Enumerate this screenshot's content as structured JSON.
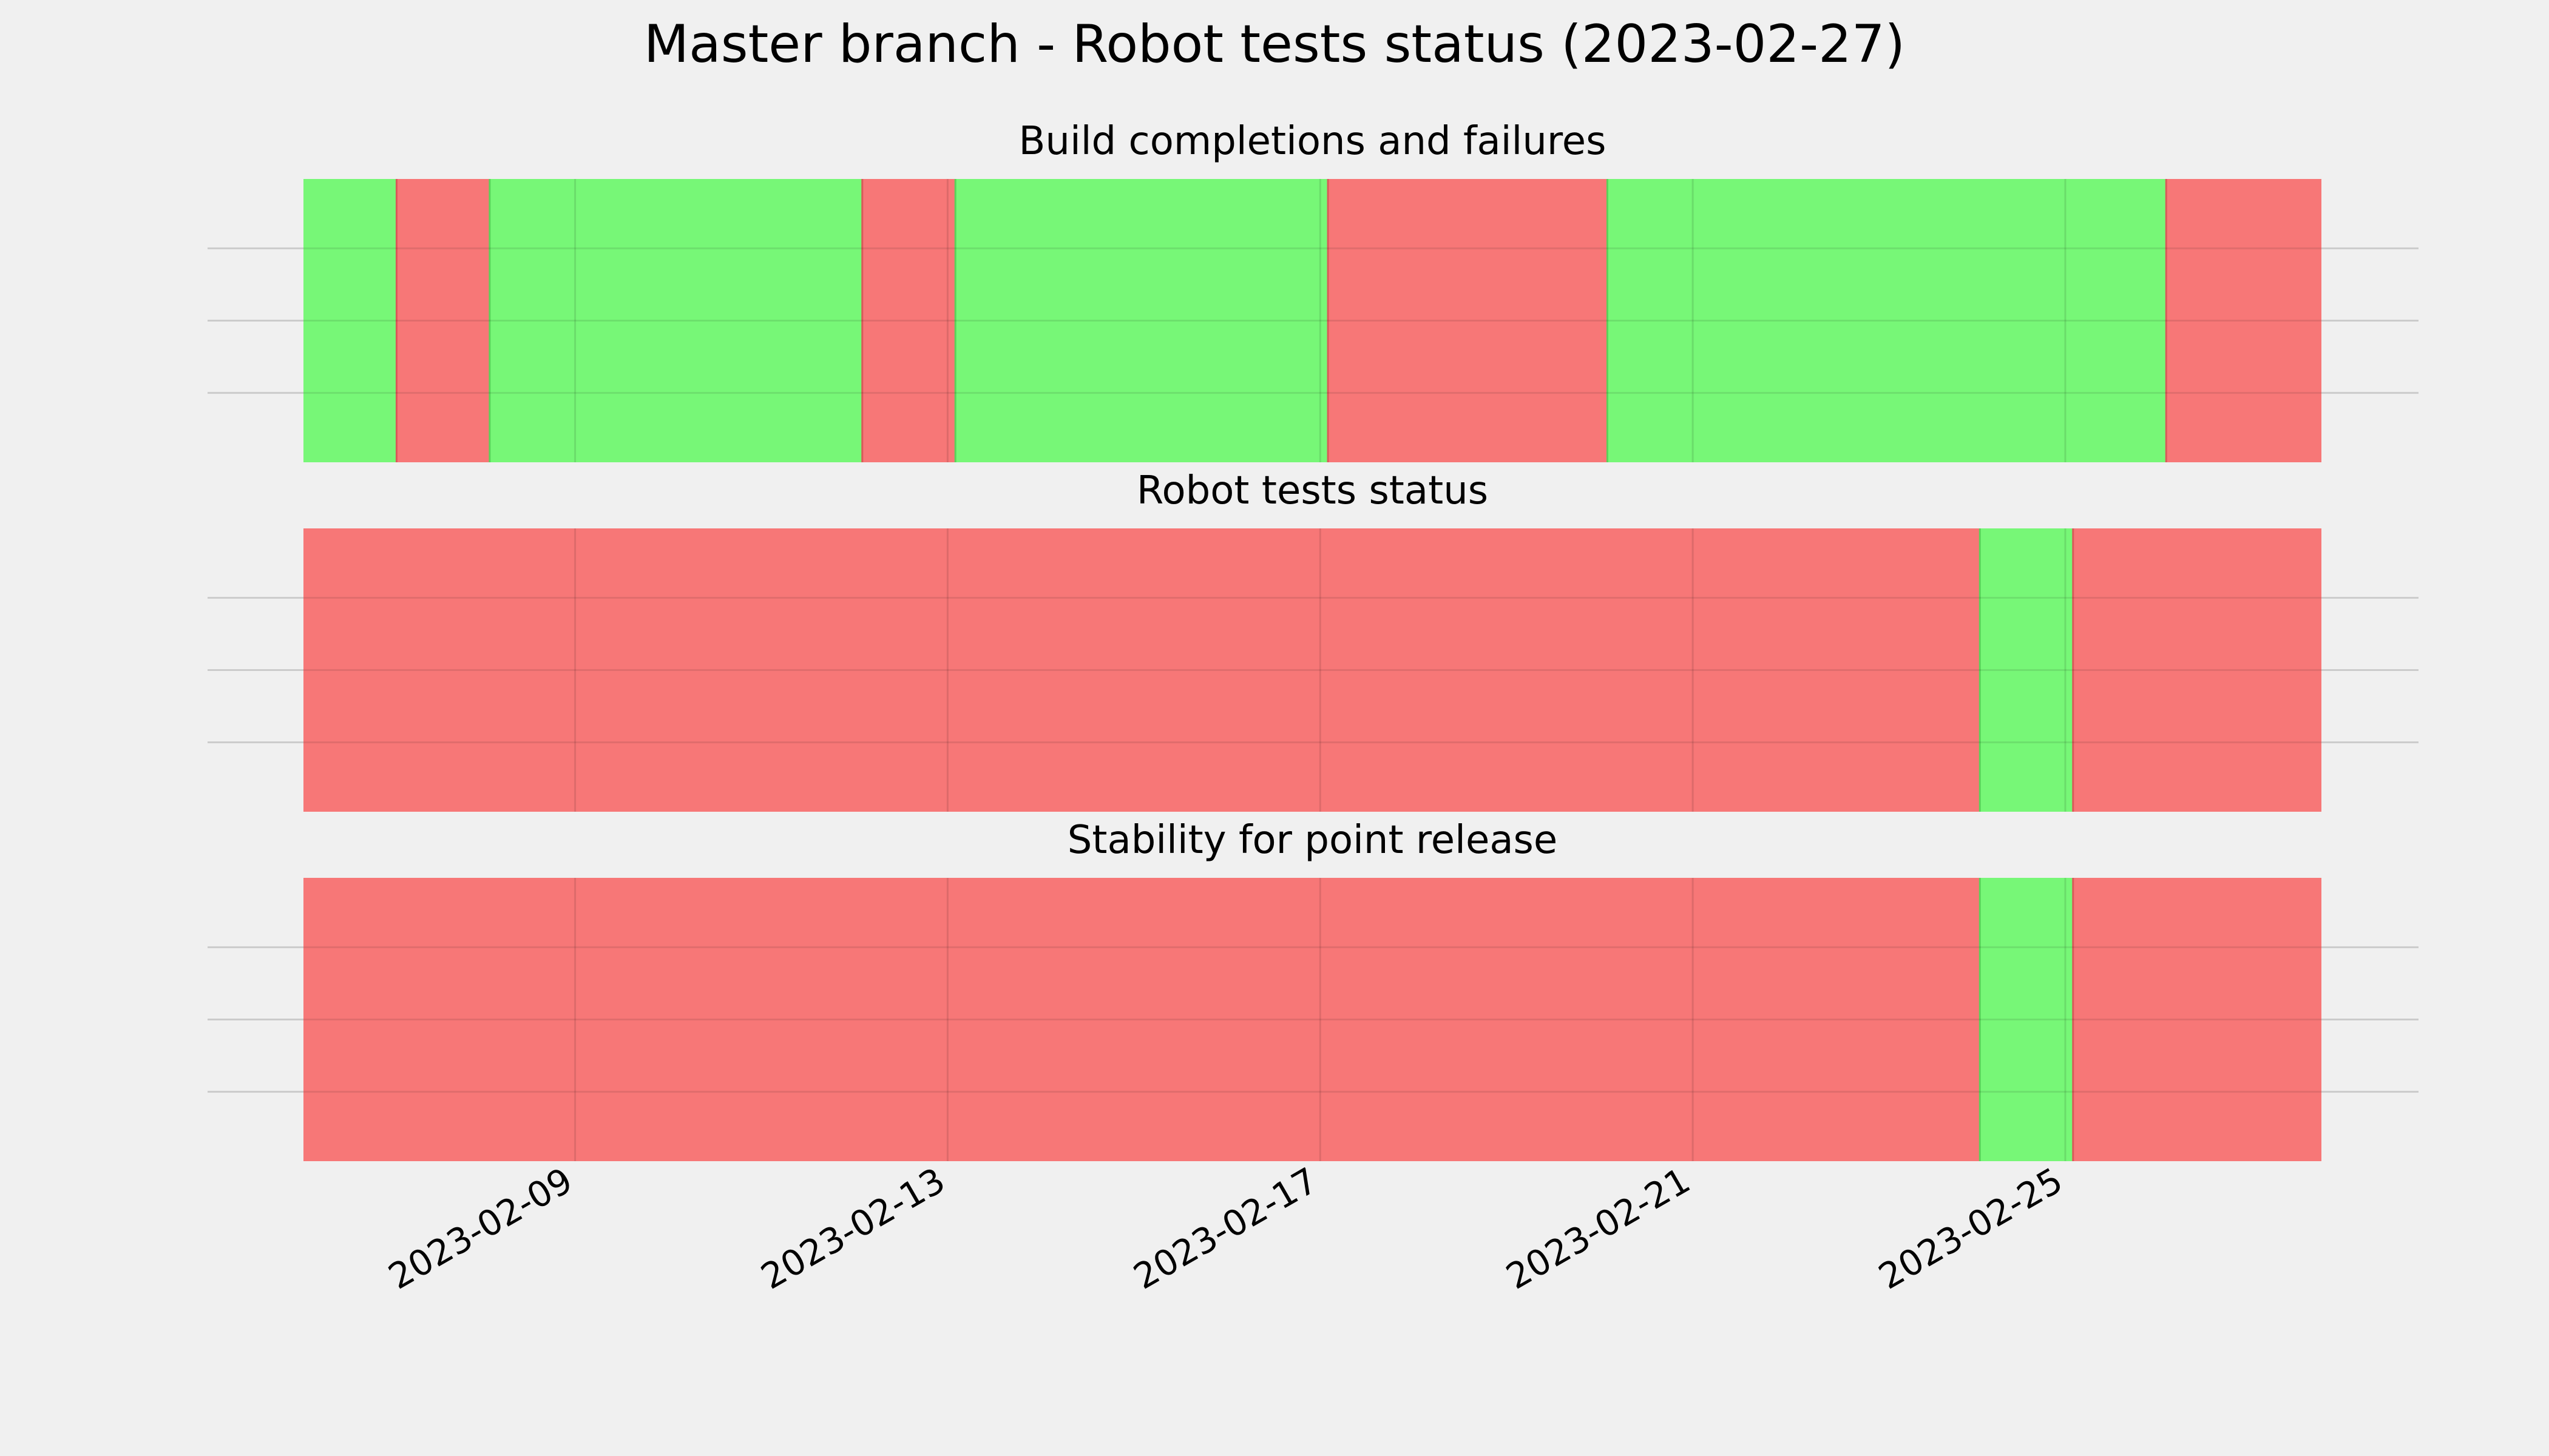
{
  "chart_data": {
    "type": "timeline",
    "title": "Master branch - Robot tests status (2023-02-27)",
    "x_ticks": [
      "2023-02-09",
      "2023-02-13",
      "2023-02-17",
      "2023-02-21",
      "2023-02-25"
    ],
    "xlim": [
      "2023-02-06T02:00",
      "2023-02-27T18:00"
    ],
    "colors": {
      "pass": "#77f777",
      "fail": "#f77777",
      "background": "#f0f0f0"
    },
    "grid": true,
    "panels": [
      {
        "title": "Build completions and failures",
        "segments": [
          {
            "start": "2023-02-06T02:00",
            "end": "2023-02-07T02:00",
            "status": "pass"
          },
          {
            "start": "2023-02-07T02:00",
            "end": "2023-02-08T02:00",
            "status": "fail"
          },
          {
            "start": "2023-02-08T02:00",
            "end": "2023-02-12T02:00",
            "status": "pass"
          },
          {
            "start": "2023-02-12T02:00",
            "end": "2023-02-13T02:00",
            "status": "fail"
          },
          {
            "start": "2023-02-13T02:00",
            "end": "2023-02-17T02:00",
            "status": "pass"
          },
          {
            "start": "2023-02-17T02:00",
            "end": "2023-02-20T02:00",
            "status": "fail"
          },
          {
            "start": "2023-02-20T02:00",
            "end": "2023-02-26T02:00",
            "status": "pass"
          },
          {
            "start": "2023-02-26T02:00",
            "end": "2023-02-27T18:00",
            "status": "fail"
          }
        ]
      },
      {
        "title": "Robot tests status",
        "segments": [
          {
            "start": "2023-02-06T02:00",
            "end": "2023-02-24T02:00",
            "status": "fail"
          },
          {
            "start": "2023-02-24T02:00",
            "end": "2023-02-25T02:00",
            "status": "pass"
          },
          {
            "start": "2023-02-25T02:00",
            "end": "2023-02-27T18:00",
            "status": "fail"
          }
        ]
      },
      {
        "title": "Stability for point release",
        "segments": [
          {
            "start": "2023-02-06T02:00",
            "end": "2023-02-24T02:00",
            "status": "fail"
          },
          {
            "start": "2023-02-24T02:00",
            "end": "2023-02-25T02:00",
            "status": "pass"
          },
          {
            "start": "2023-02-25T02:00",
            "end": "2023-02-27T18:00",
            "status": "fail"
          }
        ]
      }
    ]
  }
}
